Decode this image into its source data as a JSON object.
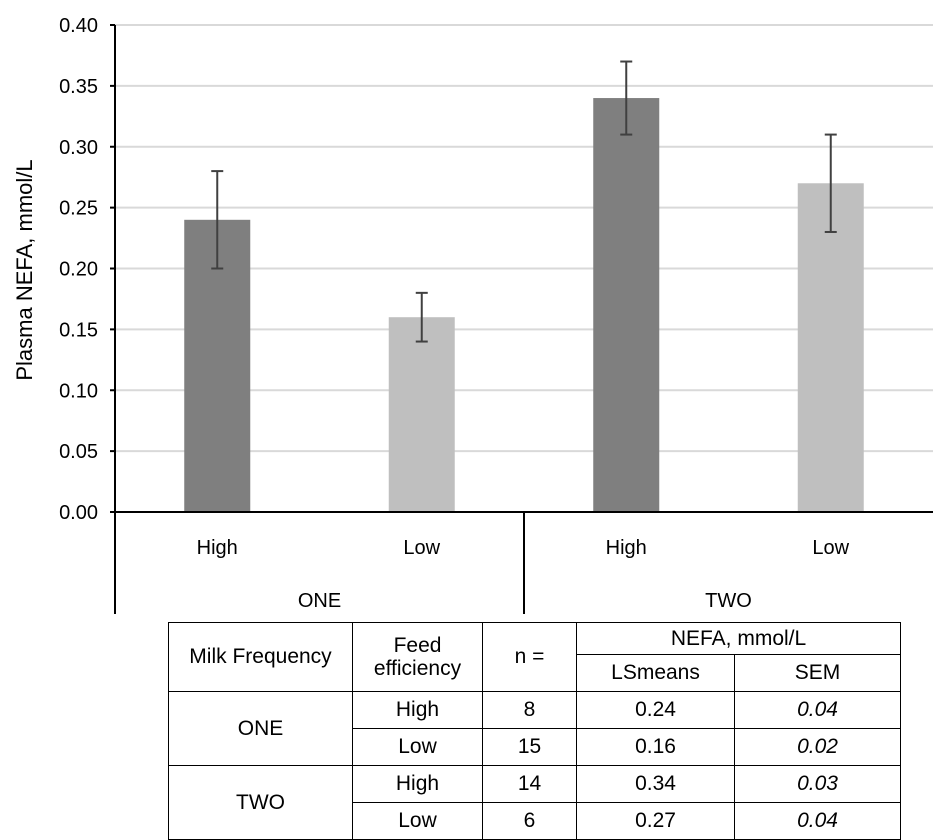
{
  "chart_data": {
    "type": "bar",
    "ylabel": "Plasma NEFA, mmol/L",
    "xlabel": "",
    "ylim": [
      0,
      0.4
    ],
    "y_ticks": [
      "0.00",
      "0.05",
      "0.10",
      "0.15",
      "0.20",
      "0.25",
      "0.30",
      "0.35",
      "0.40"
    ],
    "grid": true,
    "groups": [
      {
        "label": "ONE",
        "categories": [
          {
            "label": "High",
            "value": 0.24,
            "error": 0.04,
            "color": "#7f7f7f"
          },
          {
            "label": "Low",
            "value": 0.16,
            "error": 0.02,
            "color": "#bfbfbf"
          }
        ]
      },
      {
        "label": "TWO",
        "categories": [
          {
            "label": "High",
            "value": 0.34,
            "error": 0.03,
            "color": "#7f7f7f"
          },
          {
            "label": "Low",
            "value": 0.27,
            "error": 0.04,
            "color": "#bfbfbf"
          }
        ]
      }
    ]
  },
  "table": {
    "headers": {
      "milk_frequency": "Milk Frequency",
      "feed_efficiency_line1": "Feed",
      "feed_efficiency_line2": "efficiency",
      "n": "n =",
      "nefa": "NEFA, mmol/L",
      "lsmeans": "LSmeans",
      "sem": "SEM"
    },
    "groups": [
      {
        "name": "ONE",
        "rows": [
          {
            "fe": "High",
            "n": "8",
            "lsmeans": "0.24",
            "sem": "0.04"
          },
          {
            "fe": "Low",
            "n": "15",
            "lsmeans": "0.16",
            "sem": "0.02"
          }
        ]
      },
      {
        "name": "TWO",
        "rows": [
          {
            "fe": "High",
            "n": "14",
            "lsmeans": "0.34",
            "sem": "0.03"
          },
          {
            "fe": "Low",
            "n": "6",
            "lsmeans": "0.27",
            "sem": "0.04"
          }
        ]
      }
    ]
  }
}
